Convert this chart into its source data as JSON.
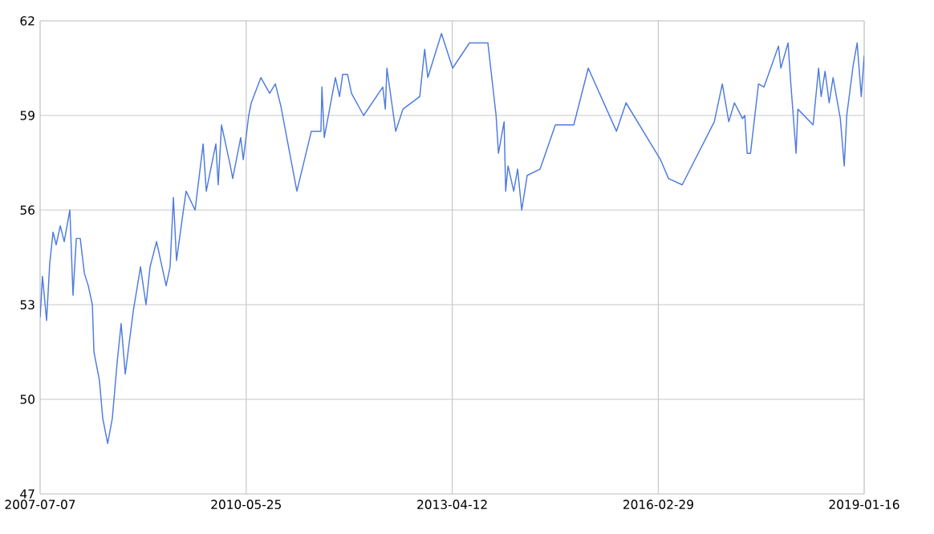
{
  "chart_data": {
    "type": "line",
    "xlim": [
      "2007-07-07",
      "2019-01-16"
    ],
    "xticks": [
      "2007-07-07",
      "2010-05-25",
      "2013-04-12",
      "2016-02-29",
      "2019-01-16"
    ],
    "ylim": [
      47,
      62
    ],
    "yticks": [
      47,
      50,
      53,
      56,
      59,
      62
    ],
    "grid": true,
    "x": [
      "2007-07-07",
      "2007-07-19",
      "2007-08-09",
      "2007-08-25",
      "2007-09-11",
      "2007-09-27",
      "2007-10-18",
      "2007-11-07",
      "2007-12-06",
      "2007-12-22",
      "2008-01-08",
      "2008-01-28",
      "2008-02-18",
      "2008-03-09",
      "2008-03-30",
      "2008-04-07",
      "2008-05-05",
      "2008-05-22",
      "2008-06-16",
      "2008-07-10",
      "2008-08-04",
      "2008-08-24",
      "2008-09-14",
      "2008-10-25",
      "2008-12-01",
      "2008-12-29",
      "2009-01-19",
      "2009-02-21",
      "2009-04-11",
      "2009-05-01",
      "2009-05-18",
      "2009-06-03",
      "2009-07-06",
      "2009-07-22",
      "2009-09-06",
      "2009-10-17",
      "2009-11-02",
      "2009-12-21",
      "2010-01-02",
      "2010-01-19",
      "2010-03-05",
      "2010-03-17",
      "2010-04-27",
      "2010-05-10",
      "2010-06-07",
      "2010-06-20",
      "2010-08-08",
      "2010-09-22",
      "2010-10-21",
      "2010-11-18",
      "2011-02-08",
      "2011-04-23",
      "2011-06-11",
      "2011-06-16",
      "2011-06-28",
      "2011-08-24",
      "2011-09-14",
      "2011-09-30",
      "2011-10-25",
      "2011-11-14",
      "2012-01-15",
      "2012-04-22",
      "2012-05-05",
      "2012-05-13",
      "2012-06-27",
      "2012-08-03",
      "2012-10-28",
      "2012-11-22",
      "2012-12-08",
      "2013-02-16",
      "2013-04-14",
      "2013-07-09",
      "2013-10-11",
      "2013-11-22",
      "2013-12-04",
      "2014-01-02",
      "2014-01-10",
      "2014-01-22",
      "2014-02-20",
      "2014-03-12",
      "2014-04-02",
      "2014-04-30",
      "2014-07-05",
      "2014-09-21",
      "2014-12-24",
      "2015-03-08",
      "2015-07-30",
      "2015-09-17",
      "2016-03-11",
      "2016-04-21",
      "2016-06-30",
      "2016-12-11",
      "2017-01-21",
      "2017-02-23",
      "2017-03-24",
      "2017-05-04",
      "2017-05-16",
      "2017-05-28",
      "2017-06-14",
      "2017-07-25",
      "2017-08-22",
      "2017-11-04",
      "2017-11-16",
      "2017-12-23",
      "2018-01-05",
      "2018-02-02",
      "2018-02-11",
      "2018-04-30",
      "2018-05-28",
      "2018-06-10",
      "2018-06-30",
      "2018-07-21",
      "2018-08-10",
      "2018-09-16",
      "2018-10-06",
      "2018-10-19",
      "2018-11-21",
      "2018-12-11",
      "2019-01-01",
      "2019-01-16"
    ],
    "series": [
      {
        "color": "#4f7be0",
        "values": [
          52.6,
          53.9,
          52.5,
          54.3,
          55.3,
          54.9,
          55.5,
          55.0,
          56.0,
          53.3,
          55.1,
          55.1,
          54.0,
          53.6,
          53.0,
          51.5,
          50.6,
          49.4,
          48.6,
          49.4,
          51.2,
          52.4,
          50.8,
          52.8,
          54.2,
          53.0,
          54.2,
          55.0,
          53.6,
          54.2,
          56.4,
          54.4,
          55.9,
          56.6,
          56.0,
          58.1,
          56.6,
          58.1,
          56.8,
          58.7,
          57.4,
          57.0,
          58.3,
          57.6,
          59.0,
          59.4,
          60.2,
          59.7,
          60.0,
          59.3,
          56.6,
          58.5,
          58.5,
          59.9,
          58.3,
          60.2,
          59.6,
          60.3,
          60.3,
          59.7,
          59.0,
          59.9,
          59.2,
          60.5,
          58.5,
          59.2,
          59.6,
          61.1,
          60.2,
          61.6,
          60.5,
          61.3,
          61.3,
          59.0,
          57.8,
          58.8,
          56.6,
          57.4,
          56.6,
          57.3,
          56.0,
          57.1,
          57.3,
          58.7,
          58.7,
          60.5,
          58.5,
          59.4,
          57.6,
          57.0,
          56.8,
          58.8,
          60.0,
          58.8,
          59.4,
          58.9,
          59.0,
          57.8,
          57.8,
          60.0,
          59.9,
          61.2,
          60.5,
          61.3,
          60.1,
          57.8,
          59.2,
          58.7,
          60.5,
          59.6,
          60.4,
          59.4,
          60.2,
          58.9,
          57.4,
          59.0,
          60.6,
          61.3,
          59.6,
          60.9
        ]
      }
    ]
  }
}
